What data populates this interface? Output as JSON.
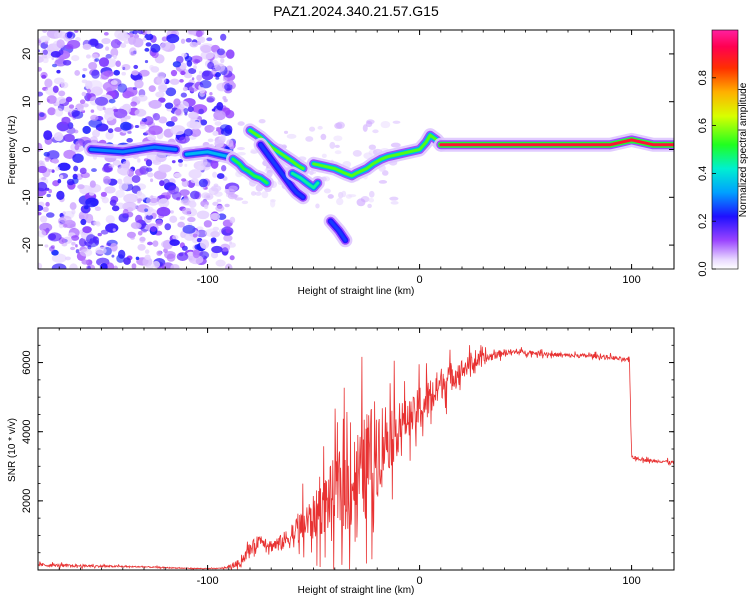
{
  "title": "PAZ1.2024.340.21.57.G15",
  "chart_data": [
    {
      "type": "heatmap",
      "xlabel": "Height of straight line (km)",
      "ylabel": "Frequency (Hz)",
      "xlim": [
        -180,
        120
      ],
      "ylim": [
        -25,
        25
      ],
      "xticks": [
        -100,
        0,
        100
      ],
      "yticks": [
        -20,
        -10,
        0,
        10,
        20
      ],
      "colorbar": {
        "label": "Normalized spectral amplitude",
        "range": [
          0,
          1
        ],
        "ticks": [
          "0.0",
          "0.2",
          "0.4",
          "0.6",
          "0.8"
        ]
      },
      "noise_region_x": [
        -180,
        -90
      ],
      "tracks": [
        {
          "x": [
            -155,
            -140,
            -125,
            -115
          ],
          "y": [
            0,
            -0.5,
            0.5,
            0
          ],
          "amplitude": 0.3
        },
        {
          "x": [
            -110,
            -100,
            -95,
            -90,
            -88
          ],
          "y": [
            -1,
            -0.5,
            -1,
            -1.5,
            -2
          ],
          "amplitude": 0.35
        },
        {
          "x": [
            -88,
            -85,
            -83,
            -81,
            -78,
            -75,
            -72
          ],
          "y": [
            -2,
            -3,
            -4,
            -4.5,
            -5.5,
            -6,
            -7
          ],
          "amplitude": 0.5
        },
        {
          "x": [
            -80,
            -75,
            -70,
            -65,
            -60,
            -57,
            -55
          ],
          "y": [
            4,
            2.5,
            0.5,
            -1,
            -2.5,
            -3.5,
            -4
          ],
          "amplitude": 0.55
        },
        {
          "x": [
            -75,
            -70,
            -65,
            -60,
            -58,
            -55
          ],
          "y": [
            1,
            -2,
            -5,
            -8,
            -9,
            -10
          ],
          "amplitude": 0.25
        },
        {
          "x": [
            -60,
            -56,
            -53,
            -50,
            -48
          ],
          "y": [
            -5,
            -6,
            -7,
            -8,
            -7
          ],
          "amplitude": 0.45
        },
        {
          "x": [
            -50,
            -45,
            -40,
            -35,
            -32,
            -30,
            -25,
            -22,
            -18,
            -15,
            -10,
            -5,
            0,
            3,
            5,
            8,
            10
          ],
          "y": [
            -3,
            -3.5,
            -4,
            -5,
            -5.5,
            -5,
            -4,
            -3,
            -2,
            -1.5,
            -1,
            -0.5,
            0,
            1.5,
            3,
            2,
            1
          ],
          "amplitude": 0.55
        },
        {
          "x": [
            10,
            20,
            30,
            40,
            50,
            60,
            70,
            80,
            90,
            95,
            100,
            105,
            110,
            115,
            120
          ],
          "y": [
            1,
            1,
            1,
            1,
            1,
            1,
            1,
            1,
            1,
            1.5,
            2,
            1.5,
            1,
            1,
            1
          ],
          "amplitude": 0.9
        },
        {
          "x": [
            -42,
            -38,
            -35
          ],
          "y": [
            -15,
            -17,
            -19
          ],
          "amplitude": 0.25
        }
      ]
    },
    {
      "type": "line",
      "xlabel": "Height of straight line (km)",
      "ylabel": "SNR (10 * v/v)",
      "xlim": [
        -180,
        120
      ],
      "ylim": [
        0,
        7000
      ],
      "xticks": [
        -100,
        0,
        100
      ],
      "yticks": [
        2000,
        4000,
        6000
      ],
      "color": "#e83232",
      "series": [
        {
          "x": [
            -180,
            -170,
            -160,
            -150,
            -140,
            -130,
            -120,
            -110,
            -100,
            -95,
            -90,
            -85,
            -80,
            -75,
            -70,
            -65,
            -60,
            -55,
            -50,
            -45,
            -40,
            -35,
            -30,
            -25,
            -22,
            -20,
            -18,
            -15,
            -12,
            -10,
            -8,
            -5,
            -2,
            0,
            2,
            5,
            8,
            10,
            15,
            20,
            25,
            30,
            35,
            40,
            50,
            60,
            70,
            80,
            90,
            95,
            99,
            100,
            101,
            105,
            110,
            115,
            120
          ],
          "y": [
            150,
            130,
            120,
            110,
            100,
            90,
            70,
            50,
            40,
            45,
            80,
            200,
            600,
            900,
            700,
            800,
            1000,
            1300,
            1500,
            1900,
            2200,
            2400,
            2600,
            3000,
            3300,
            3500,
            3700,
            3900,
            4000,
            4100,
            4300,
            4400,
            4500,
            4700,
            4800,
            5000,
            5200,
            5400,
            5600,
            5800,
            6000,
            6100,
            6200,
            6300,
            6300,
            6250,
            6200,
            6200,
            6150,
            6100,
            6050,
            3300,
            3250,
            3200,
            3150,
            3150,
            3100
          ],
          "spread": [
            80,
            70,
            60,
            50,
            40,
            30,
            25,
            20,
            20,
            20,
            60,
            200,
            300,
            300,
            300,
            400,
            600,
            900,
            1100,
            1400,
            1800,
            2200,
            2400,
            2600,
            2700,
            2400,
            2000,
            1800,
            1500,
            1200,
            1000,
            900,
            900,
            1200,
            1100,
            1000,
            900,
            800,
            700,
            500,
            400,
            300,
            200,
            150,
            100,
            100,
            100,
            100,
            100,
            100,
            100,
            80,
            80,
            80,
            80,
            80,
            80
          ]
        }
      ]
    }
  ]
}
